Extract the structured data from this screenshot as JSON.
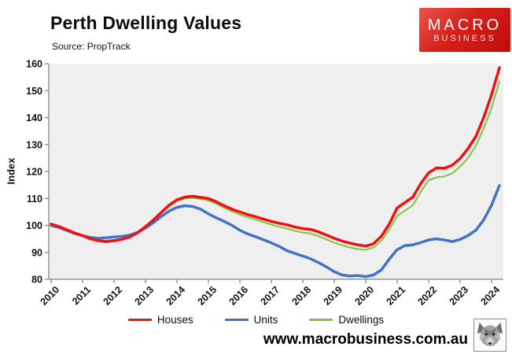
{
  "header": {
    "title": "Perth Dwelling Values",
    "source": "Source: PropTrack"
  },
  "logo": {
    "line1": "MACRO",
    "line2": "BUSINESS",
    "bg_color": "#d6201a"
  },
  "footer": {
    "website": "www.macrobusiness.com.au",
    "wolf_logo": "wolf-head-icon"
  },
  "chart_data": {
    "type": "line",
    "title": "Perth Dwelling Values",
    "xlabel": "",
    "ylabel": "Index",
    "ylim": [
      80,
      160
    ],
    "yticks": [
      80,
      90,
      100,
      110,
      120,
      130,
      140,
      150,
      160
    ],
    "xticks": [
      2010,
      2011,
      2012,
      2013,
      2014,
      2015,
      2016,
      2017,
      2018,
      2019,
      2020,
      2021,
      2022,
      2023,
      2024
    ],
    "x_start": 2010,
    "x_step": 0.25,
    "grid": false,
    "plot_bg": "#efefef",
    "axis_color": "#808080",
    "legend_position": "bottom",
    "series": [
      {
        "name": "Houses",
        "color": "#ee1111",
        "width": 3.5,
        "values": [
          100.5,
          99.6,
          98.4,
          97.2,
          96.2,
          95.0,
          94.3,
          94.0,
          94.3,
          94.8,
          95.7,
          97.3,
          99.5,
          102.0,
          104.8,
          107.5,
          109.5,
          110.5,
          110.8,
          110.4,
          110.0,
          108.8,
          107.3,
          106.0,
          105.0,
          104.0,
          103.2,
          102.3,
          101.5,
          100.8,
          100.2,
          99.4,
          98.8,
          98.5,
          97.6,
          96.4,
          95.2,
          94.2,
          93.4,
          92.8,
          92.3,
          93.2,
          96.0,
          100.5,
          106.5,
          108.5,
          110.5,
          115.5,
          119.5,
          121.3,
          121.2,
          122.3,
          124.8,
          128.5,
          133.0,
          140.0,
          148.5,
          158.5
        ]
      },
      {
        "name": "Units",
        "color": "#4472c4",
        "width": 3.5,
        "values": [
          100.0,
          99.2,
          98.1,
          97.0,
          96.2,
          95.5,
          95.2,
          95.4,
          95.7,
          95.9,
          96.4,
          97.4,
          99.0,
          101.0,
          103.3,
          105.3,
          106.7,
          107.3,
          107.0,
          106.0,
          104.3,
          102.8,
          101.5,
          100.0,
          98.2,
          96.8,
          95.8,
          94.7,
          93.5,
          92.2,
          90.6,
          89.6,
          88.6,
          87.6,
          86.2,
          84.6,
          82.8,
          81.6,
          81.2,
          81.4,
          81.0,
          81.6,
          83.5,
          87.5,
          91.0,
          92.5,
          92.8,
          93.6,
          94.6,
          95.0,
          94.6,
          94.0,
          94.8,
          96.2,
          98.2,
          102.0,
          107.5,
          114.8
        ]
      },
      {
        "name": "Dwellings",
        "color": "#85c242",
        "width": 2,
        "values": [
          100.3,
          99.5,
          98.3,
          97.1,
          96.2,
          95.1,
          94.5,
          94.3,
          94.6,
          95.0,
          95.9,
          97.4,
          99.4,
          101.8,
          104.5,
          107.0,
          109.0,
          110.0,
          110.2,
          109.8,
          109.2,
          108.0,
          106.5,
          105.2,
          104.0,
          103.0,
          102.2,
          101.2,
          100.3,
          99.5,
          98.8,
          98.0,
          97.3,
          97.0,
          96.0,
          94.8,
          93.6,
          92.6,
          91.8,
          91.2,
          90.9,
          91.8,
          94.3,
          98.5,
          103.5,
          105.5,
          107.5,
          112.5,
          116.8,
          117.8,
          118.2,
          119.3,
          121.8,
          125.0,
          129.5,
          136.0,
          143.5,
          153.5
        ]
      }
    ]
  }
}
